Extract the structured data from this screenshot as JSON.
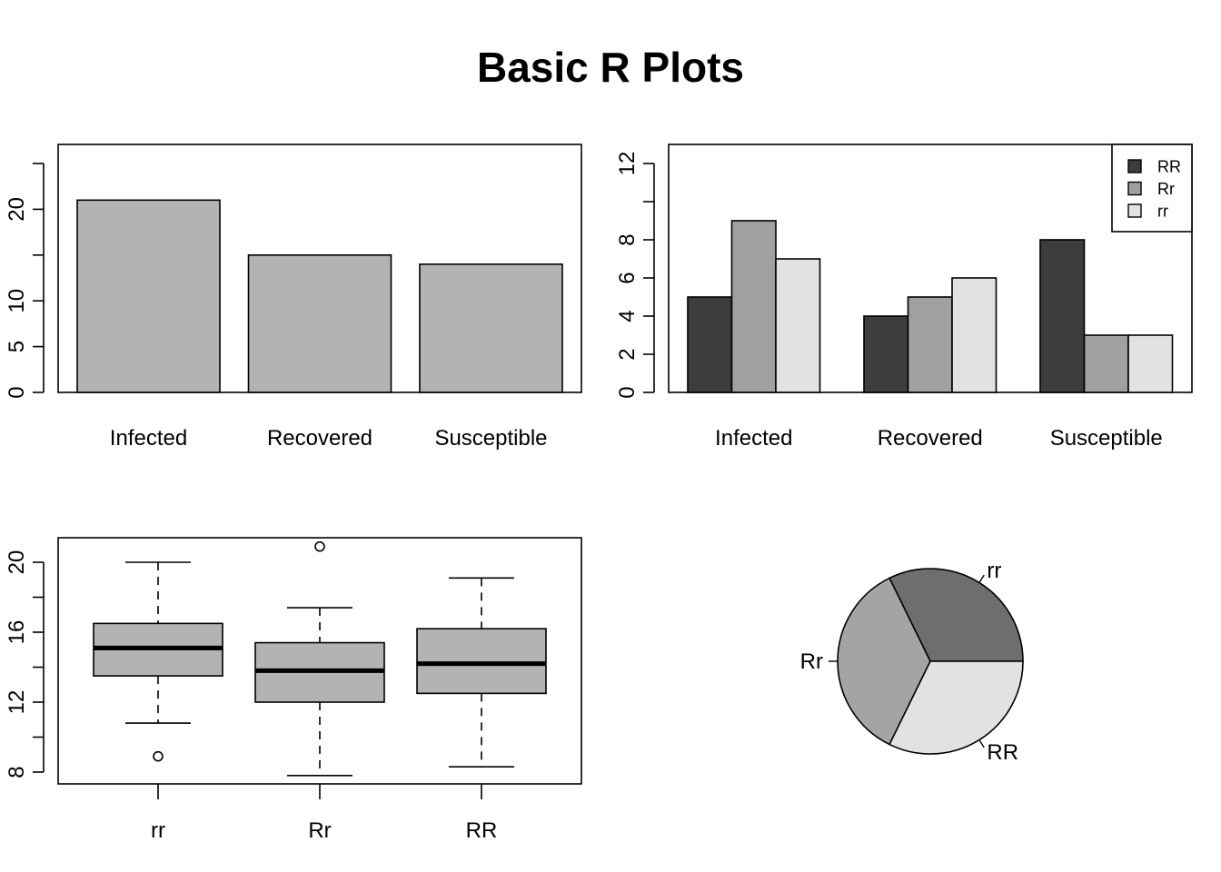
{
  "page_title": "Basic R Plots",
  "chart_data": [
    {
      "type": "bar",
      "title": "",
      "xlabel": "",
      "ylabel": "",
      "categories": [
        "Infected",
        "Recovered",
        "Susceptible"
      ],
      "values": [
        21,
        15,
        14
      ],
      "ylim": [
        0,
        25
      ],
      "yticks": [
        0,
        5,
        10,
        20
      ],
      "bar_color": "#b3b3b3",
      "grid": false
    },
    {
      "type": "bar",
      "title": "",
      "xlabel": "",
      "ylabel": "",
      "categories": [
        "Infected",
        "Recovered",
        "Susceptible"
      ],
      "series": [
        {
          "name": "RR",
          "values": [
            5,
            4,
            8
          ],
          "color": "#3d3d3d"
        },
        {
          "name": "Rr",
          "values": [
            9,
            5,
            3
          ],
          "color": "#a0a0a0"
        },
        {
          "name": "rr",
          "values": [
            7,
            6,
            3
          ],
          "color": "#e2e2e2"
        }
      ],
      "ylim": [
        0,
        13
      ],
      "yticks": [
        0,
        2,
        4,
        6,
        8,
        12
      ],
      "legend": "top-right",
      "grid": false
    },
    {
      "type": "boxplot",
      "title": "",
      "xlabel": "",
      "ylabel": "",
      "categories": [
        "rr",
        "Rr",
        "RR"
      ],
      "boxes": [
        {
          "name": "rr",
          "whisker_low": 10.8,
          "q1": 13.5,
          "median": 15.1,
          "q3": 16.5,
          "whisker_high": 20.0,
          "outliers": [
            8.9
          ]
        },
        {
          "name": "Rr",
          "whisker_low": 7.8,
          "q1": 12.0,
          "median": 13.8,
          "q3": 15.4,
          "whisker_high": 17.4,
          "outliers": [
            20.9
          ]
        },
        {
          "name": "RR",
          "whisker_low": 8.3,
          "q1": 12.5,
          "median": 14.2,
          "q3": 16.2,
          "whisker_high": 19.1,
          "outliers": []
        }
      ],
      "ylim": [
        7.5,
        21.5
      ],
      "yticks": [
        8,
        12,
        16,
        20
      ],
      "box_color": "#b3b3b3",
      "grid": false
    },
    {
      "type": "pie",
      "title": "",
      "slices": [
        {
          "label": "rr",
          "value": 30,
          "color": "#6e6e6e"
        },
        {
          "label": "Rr",
          "value": 33,
          "color": "#a4a4a4"
        },
        {
          "label": "RR",
          "value": 30,
          "color": "#e2e2e2"
        }
      ]
    }
  ]
}
